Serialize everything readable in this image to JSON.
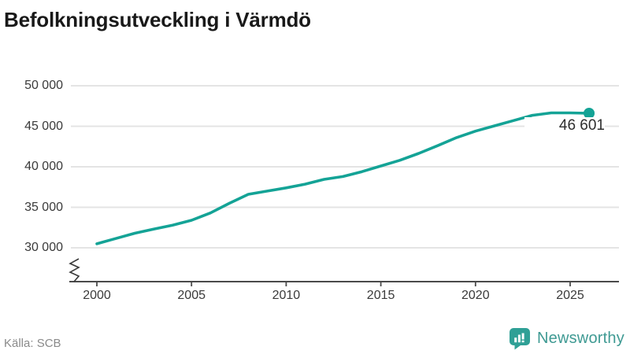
{
  "title": "Befolkningsutveckling i Värmdö",
  "source": "Källa: SCB",
  "logo": {
    "text": "Newsworthy"
  },
  "colors": {
    "line": "#14a396",
    "dot": "#14a396",
    "grid": "#e4e4e4",
    "axis": "#4a4a4a",
    "tick_label": "#3a3a3a",
    "title": "#191919",
    "source_text": "#8a8a8a",
    "brand_text": "#3f9a93",
    "brand_icon": "#2fa096",
    "end_label": "#2e2e2e"
  },
  "chart_data": {
    "type": "line",
    "title": "Befolkningsutveckling i Värmdö",
    "series_name": "Befolkning i Värmdö",
    "x": [
      2000,
      2001,
      2002,
      2003,
      2004,
      2005,
      2006,
      2007,
      2008,
      2009,
      2010,
      2011,
      2012,
      2013,
      2014,
      2015,
      2016,
      2017,
      2018,
      2019,
      2020,
      2021,
      2022,
      2023,
      2024,
      2025,
      2026
    ],
    "values": [
      30500,
      31150,
      31800,
      32300,
      32800,
      33400,
      34300,
      35500,
      36600,
      37000,
      37400,
      37850,
      38450,
      38800,
      39400,
      40100,
      40800,
      41650,
      42600,
      43600,
      44400,
      45050,
      45700,
      46350,
      46650,
      46650,
      46601
    ],
    "xlabel": "",
    "ylabel": "",
    "xlim": [
      2000,
      2026
    ],
    "ylim": [
      30000,
      50000
    ],
    "axis_break": true,
    "grid": "horizontal",
    "legend": "none",
    "y_ticks": [
      50000,
      45000,
      40000,
      35000,
      30000
    ],
    "y_tick_labels": [
      "50 000",
      "45 000",
      "40 000",
      "35 000",
      "30 000"
    ],
    "x_ticks": [
      2000,
      2005,
      2010,
      2015,
      2020,
      2025
    ],
    "x_tick_labels": [
      "2000",
      "2005",
      "2010",
      "2015",
      "2020",
      "2025"
    ],
    "end_label": "46 601",
    "end_point": {
      "year": 2026,
      "value": 46601
    }
  }
}
